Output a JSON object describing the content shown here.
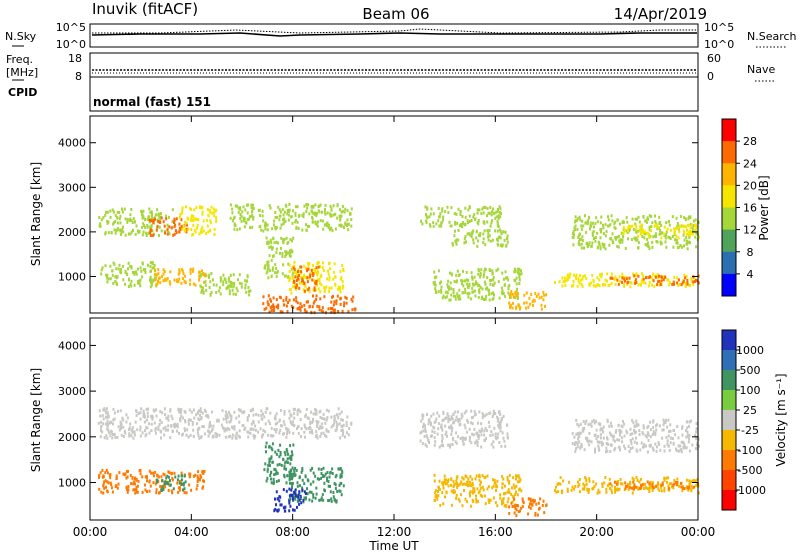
{
  "header": {
    "station": "Inuvik (fitACF)",
    "beam": "Beam 06",
    "date": "14/Apr/2019"
  },
  "noise_panel": {
    "left_label": "N.Sky",
    "right_label": "N.Search",
    "left_ticks": [
      "10^5",
      "10^0"
    ],
    "right_ticks": [
      "10^5",
      "10^0"
    ]
  },
  "freq_panel": {
    "left_label_1": "Freq.",
    "left_label_2": "[MHz]",
    "right_label": "Nave",
    "left_ticks": [
      "18",
      "8"
    ],
    "right_ticks": [
      "60",
      "0"
    ]
  },
  "cpid_panel": {
    "label": "CPID",
    "text": "normal (fast) 151"
  },
  "power_panel": {
    "ylabel": "Slant Range [km]",
    "colorbar_label": "Power [dB]",
    "colorbar_ticks": [
      "28",
      "24",
      "20",
      "16",
      "12",
      "8",
      "4"
    ],
    "colorbar_colors": [
      "#ff0000",
      "#ff6a00",
      "#ffb400",
      "#f5e600",
      "#a5d63a",
      "#4fa35a",
      "#2a6fb0",
      "#0000ff"
    ]
  },
  "velocity_panel": {
    "ylabel": "Slant Range [km]",
    "colorbar_label": "Velocity [m s⁻¹]",
    "colorbar_ticks": [
      "1000",
      "500",
      "100",
      "25",
      "-25",
      "-100",
      "-500",
      "-1000"
    ],
    "colorbar_colors": [
      "#2233bb",
      "#2e6fb8",
      "#3f9462",
      "#79cc3f",
      "#c8c8c4",
      "#f5b800",
      "#ff7a00",
      "#ff4400",
      "#ff0000"
    ]
  },
  "x_axis": {
    "label": "Time UT",
    "ticks": [
      "00:00",
      "04:00",
      "08:00",
      "12:00",
      "16:00",
      "20:00",
      "00:00"
    ]
  },
  "chart_data": [
    {
      "type": "heatmap",
      "title": "Power",
      "x_unit": "hours UT",
      "y_unit": "km",
      "xlim": [
        0,
        24
      ],
      "ylim": [
        180,
        4600
      ],
      "yticks": [
        1000,
        2000,
        3000,
        4000
      ],
      "colorbar": {
        "label": "Power [dB]",
        "range": [
          0,
          30
        ],
        "ticks": [
          4,
          8,
          12,
          16,
          20,
          24,
          28
        ]
      },
      "patches": [
        {
          "t0": 0.3,
          "t1": 3.3,
          "r0": 1950,
          "r1": 2550,
          "value": 12
        },
        {
          "t0": 2.3,
          "t1": 3.8,
          "r0": 1950,
          "r1": 2350,
          "value": 24
        },
        {
          "t0": 3.5,
          "t1": 5.0,
          "r0": 1950,
          "r1": 2600,
          "value": 16
        },
        {
          "t0": 0.4,
          "t1": 2.6,
          "r0": 800,
          "r1": 1350,
          "value": 14
        },
        {
          "t0": 2.5,
          "t1": 4.6,
          "r0": 820,
          "r1": 1200,
          "value": 22
        },
        {
          "t0": 4.3,
          "t1": 6.3,
          "r0": 600,
          "r1": 1100,
          "value": 12
        },
        {
          "t0": 5.5,
          "t1": 10.3,
          "r0": 2050,
          "r1": 2650,
          "value": 14
        },
        {
          "t0": 6.8,
          "t1": 8.0,
          "r0": 1000,
          "r1": 1900,
          "value": 12
        },
        {
          "t0": 7.8,
          "t1": 10.0,
          "r0": 650,
          "r1": 1350,
          "value": 16
        },
        {
          "t0": 8.0,
          "t1": 9.0,
          "r0": 700,
          "r1": 1300,
          "value": 26
        },
        {
          "t0": 6.8,
          "t1": 10.5,
          "r0": 220,
          "r1": 600,
          "value": 26
        },
        {
          "t0": 13.0,
          "t1": 16.2,
          "r0": 2150,
          "r1": 2600,
          "value": 14
        },
        {
          "t0": 14.2,
          "t1": 16.5,
          "r0": 1700,
          "r1": 2100,
          "value": 12
        },
        {
          "t0": 13.5,
          "t1": 17.0,
          "r0": 500,
          "r1": 1200,
          "value": 14
        },
        {
          "t0": 16.5,
          "t1": 18.0,
          "r0": 300,
          "r1": 700,
          "value": 22
        },
        {
          "t0": 18.3,
          "t1": 24.0,
          "r0": 800,
          "r1": 1100,
          "value": 16
        },
        {
          "t0": 20.5,
          "t1": 24.0,
          "r0": 850,
          "r1": 1050,
          "value": 26
        },
        {
          "t0": 19.0,
          "t1": 24.0,
          "r0": 1650,
          "r1": 2400,
          "value": 12
        },
        {
          "t0": 21.0,
          "t1": 24.0,
          "r0": 1900,
          "r1": 2200,
          "value": 16
        }
      ]
    },
    {
      "type": "heatmap",
      "title": "Velocity",
      "x_unit": "hours UT",
      "y_unit": "km",
      "xlim": [
        0,
        24
      ],
      "ylim": [
        180,
        4600
      ],
      "yticks": [
        1000,
        2000,
        3000,
        4000
      ],
      "colorbar": {
        "label": "Velocity [m s⁻¹]",
        "ticks": [
          -1000,
          -500,
          -100,
          -25,
          25,
          100,
          500,
          1000
        ]
      },
      "patches": [
        {
          "t0": 0.3,
          "t1": 10.3,
          "r0": 2000,
          "r1": 2650,
          "value": 0
        },
        {
          "t0": 0.3,
          "t1": 4.5,
          "r0": 800,
          "r1": 1300,
          "value": -150
        },
        {
          "t0": 2.6,
          "t1": 3.8,
          "r0": 850,
          "r1": 1200,
          "value": 200
        },
        {
          "t0": 6.8,
          "t1": 8.0,
          "r0": 1000,
          "r1": 1900,
          "value": 300
        },
        {
          "t0": 7.8,
          "t1": 10.0,
          "r0": 600,
          "r1": 1350,
          "value": 120
        },
        {
          "t0": 7.2,
          "t1": 8.5,
          "r0": 400,
          "r1": 900,
          "value": 700
        },
        {
          "t0": 13.0,
          "t1": 16.5,
          "r0": 1800,
          "r1": 2600,
          "value": 0
        },
        {
          "t0": 13.5,
          "t1": 17.0,
          "r0": 500,
          "r1": 1200,
          "value": -80
        },
        {
          "t0": 16.5,
          "t1": 18.0,
          "r0": 300,
          "r1": 700,
          "value": -300
        },
        {
          "t0": 18.3,
          "t1": 24.0,
          "r0": 800,
          "r1": 1150,
          "value": -60
        },
        {
          "t0": 20.5,
          "t1": 24.0,
          "r0": 900,
          "r1": 1050,
          "value": -300
        },
        {
          "t0": 19.0,
          "t1": 24.0,
          "r0": 1700,
          "r1": 2400,
          "value": 0
        }
      ]
    }
  ]
}
